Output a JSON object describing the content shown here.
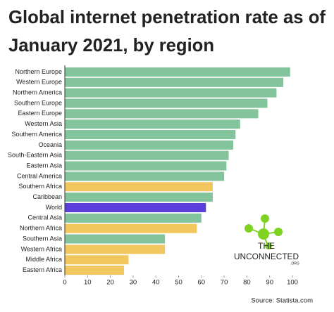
{
  "chart_data": {
    "type": "bar",
    "orientation": "horizontal",
    "title": [
      "Global internet penetration rate as of",
      "January 2021, by region"
    ],
    "categories": [
      "Northern Europe",
      "Western Europe",
      "Northern America",
      "Southern Europe",
      "Eastern Europe",
      "Western Asia",
      "Southern America",
      "Oceania",
      "South-Eastern Asia",
      "Eastern Asia",
      "Central America",
      "Southern Africa",
      "Caribbean",
      "World",
      "Central Asia",
      "Northern Africa",
      "Southern Asia",
      "Western Africa",
      "Middle Africa",
      "Eastern Africa"
    ],
    "values": [
      99,
      96,
      93,
      89,
      85,
      77,
      75,
      74,
      72,
      71,
      70,
      65,
      65,
      62,
      60,
      58,
      44,
      44,
      28,
      26
    ],
    "colors": [
      "#84c49c",
      "#84c49c",
      "#84c49c",
      "#84c49c",
      "#84c49c",
      "#84c49c",
      "#84c49c",
      "#84c49c",
      "#84c49c",
      "#84c49c",
      "#84c49c",
      "#f1c75e",
      "#84c49c",
      "#5b3fd8",
      "#84c49c",
      "#f1c75e",
      "#84c49c",
      "#f1c75e",
      "#f1c75e",
      "#f1c75e"
    ],
    "xlim": [
      0,
      100
    ],
    "xticks": [
      0,
      10,
      20,
      30,
      40,
      50,
      60,
      70,
      80,
      90,
      100
    ],
    "source": "Source: Statista.com",
    "logo": [
      "THE",
      "UNCONNECTED",
      ".ORG"
    ]
  }
}
